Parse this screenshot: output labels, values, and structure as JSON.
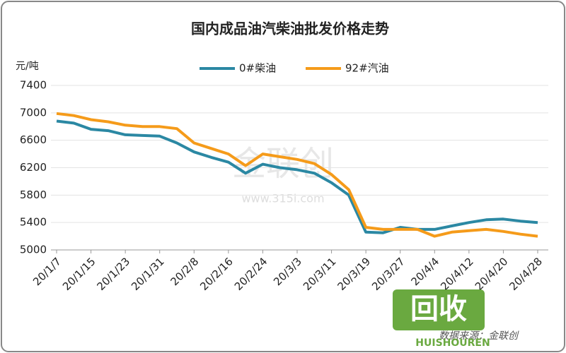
{
  "chart_data": {
    "type": "line",
    "title": "国内成品油汽柴油批发价格走势",
    "y_label": "元/吨",
    "categories": [
      "20/1/7",
      null,
      "20/1/15",
      null,
      "20/1/23",
      null,
      "20/1/31",
      null,
      "20/2/8",
      null,
      "20/2/16",
      null,
      "20/2/24",
      null,
      "20/3/3",
      null,
      "20/3/11",
      null,
      "20/3/19",
      null,
      "20/3/27",
      null,
      "20/4/4",
      null,
      "20/4/12",
      null,
      "20/4/20",
      null,
      "20/4/28"
    ],
    "series": [
      {
        "name": "0#柴油",
        "color": "#2b88a3",
        "values": [
          6880,
          6850,
          6760,
          6740,
          6680,
          6670,
          6660,
          6560,
          6430,
          6350,
          6280,
          6120,
          6250,
          6200,
          6170,
          6120,
          5980,
          5800,
          5260,
          5250,
          5330,
          5300,
          5300,
          5350,
          5400,
          5440,
          5450,
          5420,
          5400
        ]
      },
      {
        "name": "92#汽油",
        "color": "#f59b1a",
        "values": [
          6990,
          6960,
          6900,
          6870,
          6820,
          6800,
          6800,
          6770,
          6560,
          6480,
          6400,
          6230,
          6400,
          6360,
          6320,
          6260,
          6100,
          5880,
          5330,
          5300,
          5300,
          5300,
          5200,
          5260,
          5280,
          5300,
          5270,
          5230,
          5200
        ]
      }
    ],
    "ylim": [
      5000,
      7400
    ],
    "yticks": [
      5000,
      5400,
      5800,
      6200,
      6600,
      7000,
      7400
    ],
    "grid": true,
    "legend": "top",
    "watermark": "金联创",
    "watermark_url": "www.315i.com",
    "source": "数据来源：金联创",
    "logo": "回收",
    "logo_sub": "HUISHOUREN"
  }
}
